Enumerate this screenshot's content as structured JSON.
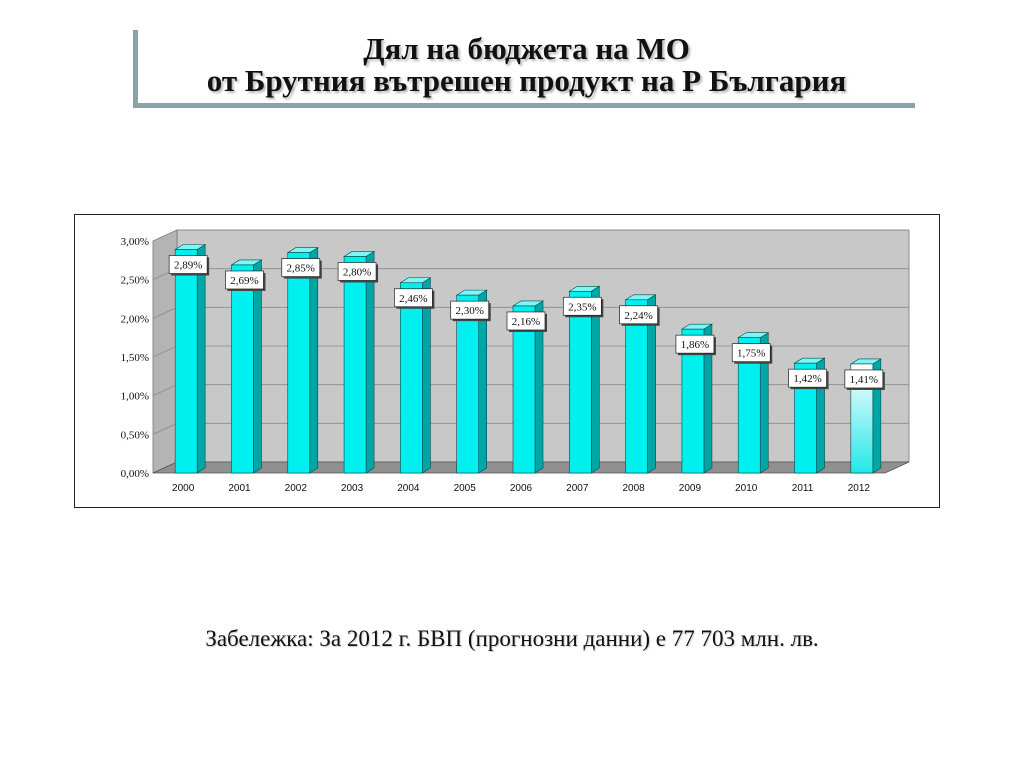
{
  "slide": {
    "title_line1": "Дял на бюджета на МО",
    "title_line2": "от Брутния вътрешен продукт на Р България",
    "note": "Забележка: За 2012 г. БВП (прогнозни данни) е 77 703 млн. лв."
  },
  "chart_data": {
    "type": "bar",
    "title": "",
    "xlabel": "",
    "ylabel": "",
    "categories": [
      "2000",
      "2001",
      "2002",
      "2003",
      "2004",
      "2005",
      "2006",
      "2007",
      "2008",
      "2009",
      "2010",
      "2011",
      "2012"
    ],
    "values": [
      2.89,
      2.69,
      2.85,
      2.8,
      2.46,
      2.3,
      2.16,
      2.35,
      2.24,
      1.86,
      1.75,
      1.42,
      1.41
    ],
    "data_labels": [
      "2,89%",
      "2,69%",
      "2,85%",
      "2,80%",
      "2,46%",
      "2,30%",
      "2,16%",
      "2,35%",
      "2,24%",
      "1,86%",
      "1,75%",
      "1,42%",
      "1,41%"
    ],
    "y_ticks": [
      0,
      0.5,
      1.0,
      1.5,
      2.0,
      2.5,
      3.0
    ],
    "y_tick_labels": [
      "0,00%",
      "0,50%",
      "1,00%",
      "1,50%",
      "2,00%",
      "2,50%",
      "3,00%"
    ],
    "ylim": [
      0,
      3.0
    ],
    "grid": true,
    "legend": "none",
    "colors": {
      "bar_front": "#00f0f0",
      "bar_side": "#00a6a6",
      "bar_top": "#7ff6f6",
      "bar_last_front_top": "#ffffff",
      "bar_last_front_bottom": "#22e8e8",
      "wall": "#c8c8c8",
      "floor": "#909090",
      "gridline": "#8a8a8a"
    }
  }
}
